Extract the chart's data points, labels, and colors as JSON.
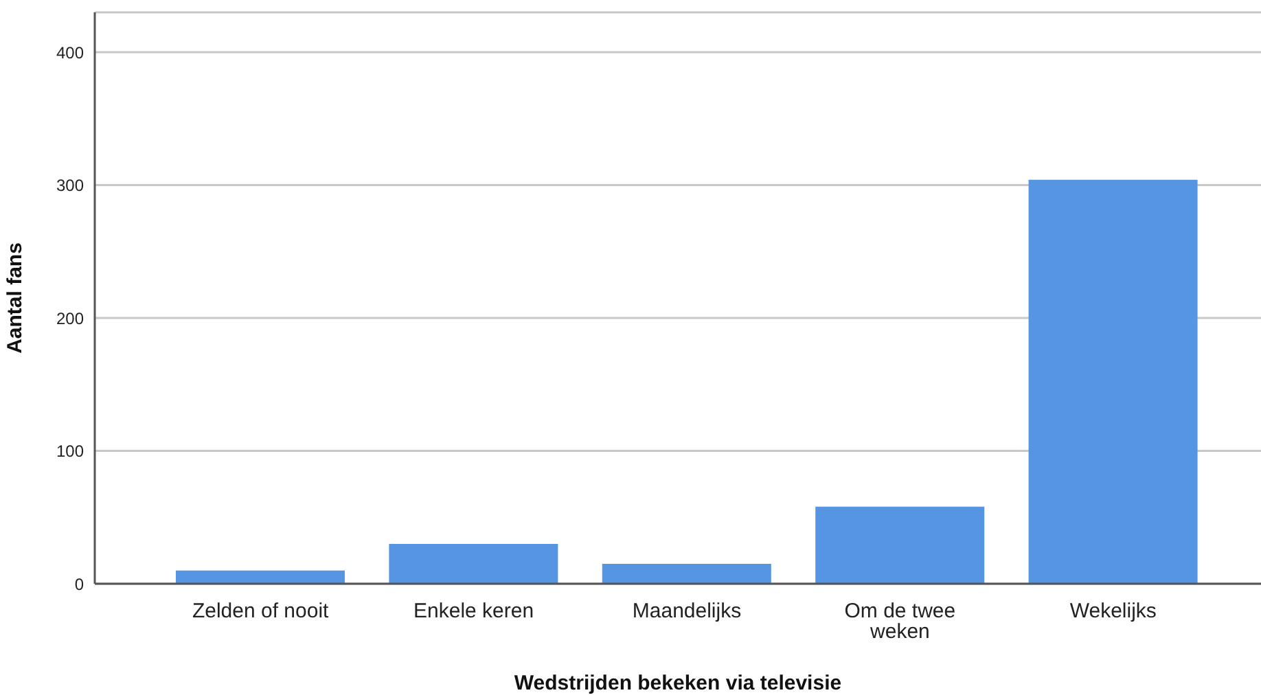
{
  "chart_data": {
    "type": "bar",
    "xlabel": "Wedstrijden bekeken via televisie",
    "ylabel": "Aantal fans",
    "categories": [
      "Zelden of nooit",
      "Enkele keren",
      "Maandelijks",
      "Om de twee weken",
      "Wekelijks"
    ],
    "values": [
      10,
      30,
      15,
      58,
      304
    ],
    "color": "#5595e1",
    "ylim": [
      0,
      430
    ],
    "yticks": [
      0,
      100,
      200,
      300,
      400
    ],
    "grid": "y"
  }
}
